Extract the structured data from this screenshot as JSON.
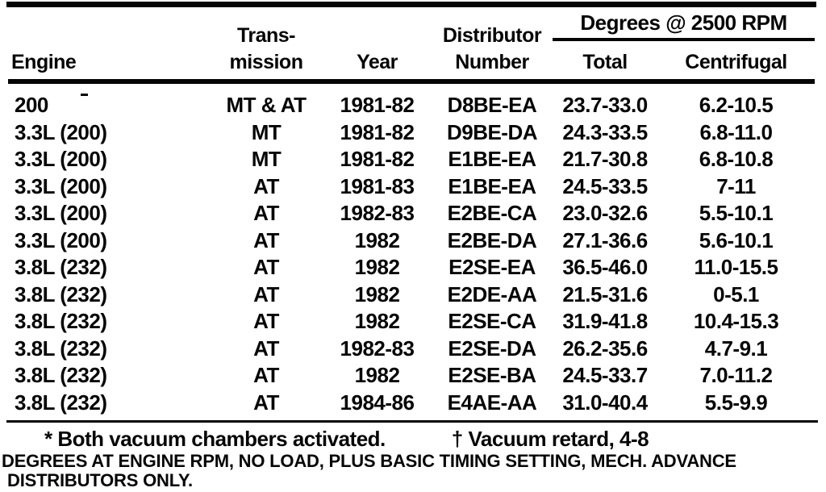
{
  "table": {
    "column_headers": {
      "engine": "Engine",
      "transmission": [
        "Trans-",
        "mission"
      ],
      "year": "Year",
      "distributor_number": [
        "Distributor",
        "Number"
      ],
      "degrees_group": "Degrees @ 2500 RPM",
      "total": "Total",
      "centrifugal": "Centrifugal"
    },
    "rows": [
      [
        "200",
        "MT & AT",
        "1981-82",
        "D8BE-EA",
        "23.7-33.0",
        "6.2-10.5"
      ],
      [
        "3.3L (200)",
        "MT",
        "1981-82",
        "D9BE-DA",
        "24.3-33.5",
        "6.8-11.0"
      ],
      [
        "3.3L (200)",
        "MT",
        "1981-82",
        "E1BE-EA",
        "21.7-30.8",
        "6.8-10.8"
      ],
      [
        "3.3L (200)",
        "AT",
        "1981-83",
        "E1BE-EA",
        "24.5-33.5",
        "7-11"
      ],
      [
        "3.3L (200)",
        "AT",
        "1982-83",
        "E2BE-CA",
        "23.0-32.6",
        "5.5-10.1"
      ],
      [
        "3.3L (200)",
        "AT",
        "1982",
        "E2BE-DA",
        "27.1-36.6",
        "5.6-10.1"
      ],
      [
        "3.8L (232)",
        "AT",
        "1982",
        "E2SE-EA",
        "36.5-46.0",
        "11.0-15.5"
      ],
      [
        "3.8L (232)",
        "AT",
        "1982",
        "E2DE-AA",
        "21.5-31.6",
        "0-5.1"
      ],
      [
        "3.8L (232)",
        "AT",
        "1982",
        "E2SE-CA",
        "31.9-41.8",
        "10.4-15.3"
      ],
      [
        "3.8L (232)",
        "AT",
        "1982-83",
        "E2SE-DA",
        "26.2-35.6",
        "4.7-9.1"
      ],
      [
        "3.8L (232)",
        "AT",
        "1982",
        "E2SE-BA",
        "24.5-33.7",
        "7.0-11.2"
      ],
      [
        "3.8L (232)",
        "AT",
        "1984-86",
        "E4AE-AA",
        "31.0-40.4",
        "5.5-9.9"
      ]
    ]
  },
  "footnotes": {
    "asterisk": "* Both vacuum chambers activated.",
    "dagger": "† Vacuum retard, 4-8"
  },
  "caption": {
    "line1": "DEGREES AT ENGINE RPM, NO LOAD, PLUS BASIC TIMING SETTING, MECH. ADVANCE",
    "line2": "DISTRIBUTORS ONLY."
  },
  "colors": {
    "ink": "#050505",
    "paper": "#ffffff"
  }
}
